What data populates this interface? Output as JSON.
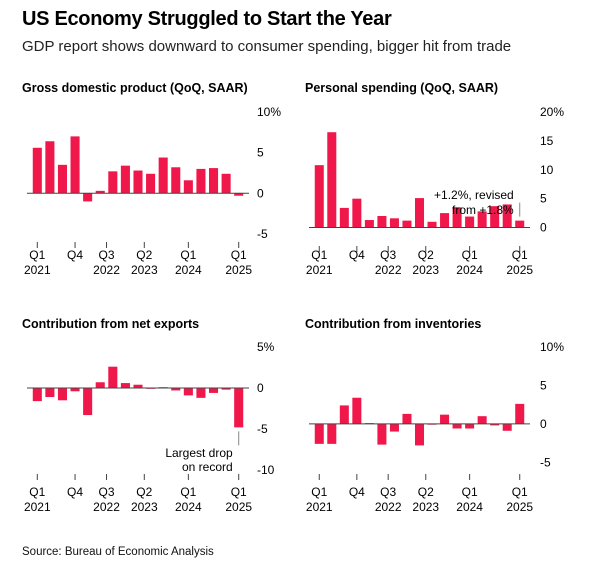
{
  "title": "US Economy Struggled to Start the Year",
  "subtitle": "GDP report shows downward to consumer spending, bigger hit from trade",
  "source": "Source: Bureau of Economic Analysis",
  "colors": {
    "bar": "#f0174b",
    "zero_line": "#444444",
    "annotation_line": "#888888"
  },
  "chart_data": [
    {
      "type": "bar",
      "title": "Gross domestic product (QoQ, SAAR)",
      "categories": [
        "Q1 2021",
        "Q2 2021",
        "Q3 2021",
        "Q4 2021",
        "Q1 2022",
        "Q2 2022",
        "Q3 2022",
        "Q4 2022",
        "Q1 2023",
        "Q2 2023",
        "Q3 2023",
        "Q4 2023",
        "Q1 2024",
        "Q2 2024",
        "Q3 2024",
        "Q4 2024",
        "Q1 2025"
      ],
      "values": [
        5.6,
        6.4,
        3.5,
        7.0,
        -1.0,
        0.3,
        2.7,
        3.4,
        2.8,
        2.4,
        4.4,
        3.2,
        1.6,
        3.0,
        3.1,
        2.4,
        -0.3
      ],
      "ylim": [
        -5.5,
        10
      ],
      "y_ticks": [
        {
          "v": 10,
          "label": "10%"
        },
        {
          "v": 5,
          "label": "5"
        },
        {
          "v": 0,
          "label": "0"
        },
        {
          "v": -5,
          "label": "-5"
        }
      ],
      "x_ticks": [
        {
          "i": 0,
          "l1": "Q1",
          "l2": "2021"
        },
        {
          "i": 3,
          "l1": "Q4",
          "l2": ""
        },
        {
          "i": 5.5,
          "l1": "Q3",
          "l2": "2022"
        },
        {
          "i": 8.5,
          "l1": "Q2",
          "l2": "2023"
        },
        {
          "i": 12,
          "l1": "Q1",
          "l2": "2024"
        },
        {
          "i": 16,
          "l1": "Q1",
          "l2": "2025"
        }
      ]
    },
    {
      "type": "bar",
      "title": "Personal spending (QoQ, SAAR)",
      "categories": [
        "Q1 2021",
        "Q2 2021",
        "Q3 2021",
        "Q4 2021",
        "Q1 2022",
        "Q2 2022",
        "Q3 2022",
        "Q4 2022",
        "Q1 2023",
        "Q2 2023",
        "Q3 2023",
        "Q4 2023",
        "Q1 2024",
        "Q2 2024",
        "Q3 2024",
        "Q4 2024",
        "Q1 2025"
      ],
      "values": [
        10.8,
        16.5,
        3.4,
        5.0,
        1.3,
        2.0,
        1.6,
        1.2,
        5.1,
        1.0,
        2.5,
        3.5,
        1.9,
        2.8,
        3.7,
        4.0,
        1.2
      ],
      "ylim": [
        -2.5,
        20
      ],
      "y_ticks": [
        {
          "v": 20,
          "label": "20%"
        },
        {
          "v": 15,
          "label": "15"
        },
        {
          "v": 10,
          "label": "10"
        },
        {
          "v": 5,
          "label": "5"
        },
        {
          "v": 0,
          "label": "0"
        }
      ],
      "x_ticks": [
        {
          "i": 0,
          "l1": "Q1",
          "l2": "2021"
        },
        {
          "i": 3,
          "l1": "Q4",
          "l2": ""
        },
        {
          "i": 5.5,
          "l1": "Q3",
          "l2": "2022"
        },
        {
          "i": 8.5,
          "l1": "Q2",
          "l2": "2023"
        },
        {
          "i": 12,
          "l1": "Q1",
          "l2": "2024"
        },
        {
          "i": 16,
          "l1": "Q1",
          "l2": "2025"
        }
      ],
      "annotation": {
        "bar_index": 16,
        "lines": [
          "+1.2%, revised",
          "from +1.8%"
        ]
      }
    },
    {
      "type": "bar",
      "title": "Contribution from net exports",
      "categories": [
        "Q1 2021",
        "Q2 2021",
        "Q3 2021",
        "Q4 2021",
        "Q1 2022",
        "Q2 2022",
        "Q3 2022",
        "Q4 2022",
        "Q1 2023",
        "Q2 2023",
        "Q3 2023",
        "Q4 2023",
        "Q1 2024",
        "Q2 2024",
        "Q3 2024",
        "Q4 2024",
        "Q1 2025"
      ],
      "values": [
        -1.6,
        -1.1,
        -1.5,
        -0.4,
        -3.3,
        0.7,
        2.6,
        0.6,
        0.4,
        0.0,
        0.1,
        -0.3,
        -0.9,
        -1.2,
        -0.6,
        -0.2,
        -4.8
      ],
      "ylim": [
        -10,
        5
      ],
      "y_ticks": [
        {
          "v": 5,
          "label": "5%"
        },
        {
          "v": 0,
          "label": "0"
        },
        {
          "v": -5,
          "label": "-5"
        },
        {
          "v": -10,
          "label": "-10"
        }
      ],
      "x_ticks": [
        {
          "i": 0,
          "l1": "Q1",
          "l2": "2021"
        },
        {
          "i": 3,
          "l1": "Q4",
          "l2": ""
        },
        {
          "i": 5.5,
          "l1": "Q3",
          "l2": "2022"
        },
        {
          "i": 8.5,
          "l1": "Q2",
          "l2": "2023"
        },
        {
          "i": 12,
          "l1": "Q1",
          "l2": "2024"
        },
        {
          "i": 16,
          "l1": "Q1",
          "l2": "2025"
        }
      ],
      "annotation": {
        "bar_index": 16,
        "lines": [
          "Largest drop",
          "on record"
        ]
      }
    },
    {
      "type": "bar",
      "title": "Contribution from inventories",
      "categories": [
        "Q1 2021",
        "Q2 2021",
        "Q3 2021",
        "Q4 2021",
        "Q1 2022",
        "Q2 2022",
        "Q3 2022",
        "Q4 2022",
        "Q1 2023",
        "Q2 2023",
        "Q3 2023",
        "Q4 2023",
        "Q1 2024",
        "Q2 2024",
        "Q3 2024",
        "Q4 2024",
        "Q1 2025"
      ],
      "values": [
        -2.6,
        -2.6,
        2.4,
        3.4,
        0.1,
        -2.7,
        -1.0,
        1.3,
        -2.8,
        -0.1,
        1.2,
        -0.6,
        -0.6,
        1.0,
        -0.2,
        -0.9,
        2.6
      ],
      "ylim": [
        -6,
        10
      ],
      "y_ticks": [
        {
          "v": 10,
          "label": "10%"
        },
        {
          "v": 5,
          "label": "5"
        },
        {
          "v": 0,
          "label": "0"
        },
        {
          "v": -5,
          "label": "-5"
        }
      ],
      "x_ticks": [
        {
          "i": 0,
          "l1": "Q1",
          "l2": "2021"
        },
        {
          "i": 3,
          "l1": "Q4",
          "l2": ""
        },
        {
          "i": 5.5,
          "l1": "Q3",
          "l2": "2022"
        },
        {
          "i": 8.5,
          "l1": "Q2",
          "l2": "2023"
        },
        {
          "i": 12,
          "l1": "Q1",
          "l2": "2024"
        },
        {
          "i": 16,
          "l1": "Q1",
          "l2": "2025"
        }
      ]
    }
  ]
}
